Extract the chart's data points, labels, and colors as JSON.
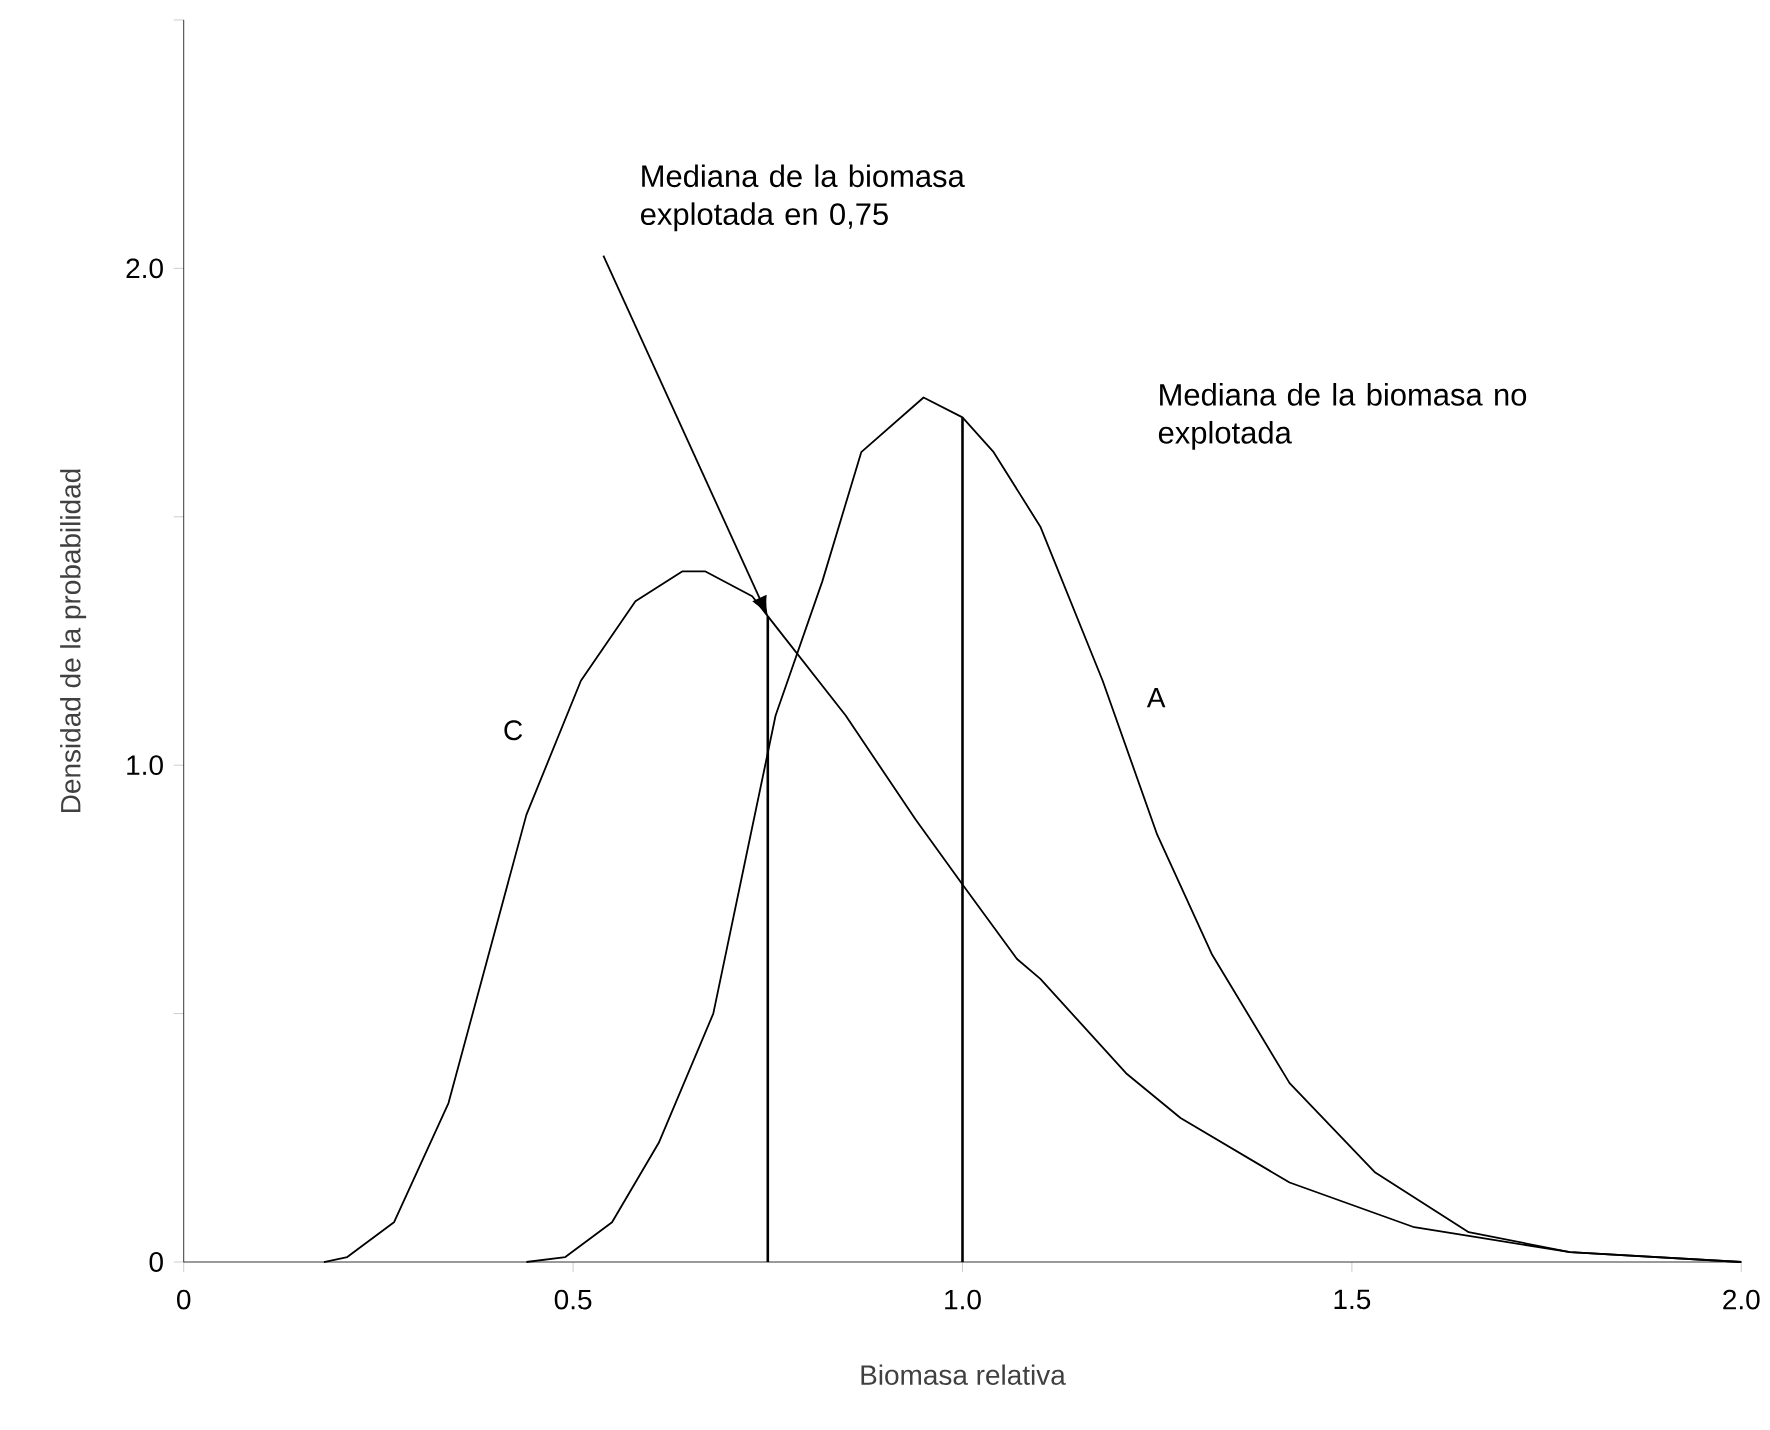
{
  "chart_data": {
    "type": "line",
    "xlabel": "Biomasa relativa",
    "ylabel": "Densidad de la probabilidad",
    "xlim": [
      0,
      2.0
    ],
    "ylim": [
      0,
      2.5
    ],
    "xticks": [
      0,
      {
        "value": 0.5,
        "label": "0.5"
      },
      {
        "value": 1,
        "label": "1.0"
      },
      {
        "value": 1.5,
        "label": "1.5"
      },
      {
        "value": 2,
        "label": "2.0"
      }
    ],
    "yticks": [
      0,
      {
        "value": 0.5,
        "label": null
      },
      {
        "value": 1,
        "label": "1.0"
      },
      {
        "value": 1.5,
        "label": null
      },
      {
        "value": 2,
        "label": "2.0"
      },
      {
        "value": 2.5,
        "label": null
      }
    ],
    "series": [
      {
        "name": "C",
        "color": "#000000",
        "x": [
          0.18,
          0.21,
          0.27,
          0.34,
          0.39,
          0.44,
          0.51,
          0.58,
          0.64,
          0.67,
          0.73,
          0.76,
          0.85,
          0.94,
          1.0,
          1.07,
          1.1,
          1.21,
          1.28,
          1.42,
          1.58,
          1.66,
          1.78,
          2.0
        ],
        "values": [
          0,
          0.01,
          0.08,
          0.32,
          0.61,
          0.9,
          1.17,
          1.33,
          1.39,
          1.39,
          1.34,
          1.28,
          1.1,
          0.89,
          0.76,
          0.61,
          0.57,
          0.38,
          0.29,
          0.16,
          0.07,
          0.05,
          0.02,
          0
        ]
      },
      {
        "name": "A",
        "color": "#000000",
        "x": [
          0.44,
          0.49,
          0.55,
          0.61,
          0.68,
          0.72,
          0.76,
          0.82,
          0.87,
          0.95,
          1.0,
          1.04,
          1.1,
          1.18,
          1.25,
          1.32,
          1.42,
          1.53,
          1.65,
          1.78,
          2.0
        ],
        "values": [
          0,
          0.01,
          0.08,
          0.24,
          0.5,
          0.8,
          1.1,
          1.37,
          1.63,
          1.74,
          1.7,
          1.63,
          1.48,
          1.17,
          0.86,
          0.62,
          0.36,
          0.18,
          0.06,
          0.02,
          0
        ]
      }
    ],
    "ref_lines": [
      {
        "axis": "x",
        "value": 0.75,
        "color": "#000000"
      },
      {
        "axis": "x",
        "value": 1.0,
        "color": "#000000"
      }
    ],
    "annotations": [
      "Mediana de la biomasa explotada en 0,75",
      "Mediana de la biomasa no explotada"
    ]
  }
}
